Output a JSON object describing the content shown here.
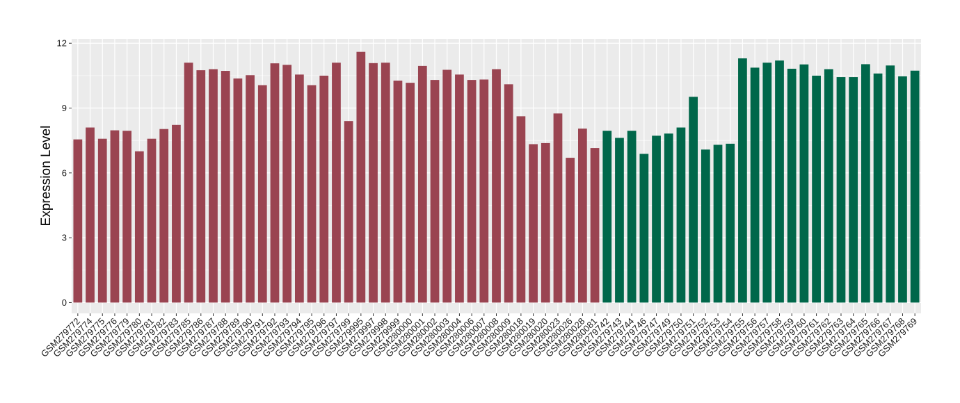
{
  "chart_data": {
    "type": "bar",
    "title": "",
    "xlabel": "",
    "ylabel": "Expression Level",
    "ylim": [
      -0.5,
      12.2
    ],
    "yticks": [
      0,
      3,
      6,
      9,
      12
    ],
    "grid": true,
    "legend": "none",
    "colors": {
      "group1": "#9a4451",
      "group2": "#00674a",
      "panel": "#ebebeb",
      "grid": "#ffffff"
    },
    "categories": [
      "GSM279772",
      "GSM279774",
      "GSM279775",
      "GSM279776",
      "GSM279779",
      "GSM279780",
      "GSM279781",
      "GSM279782",
      "GSM279783",
      "GSM279785",
      "GSM279786",
      "GSM279787",
      "GSM279788",
      "GSM279789",
      "GSM279790",
      "GSM279791",
      "GSM279792",
      "GSM279793",
      "GSM279794",
      "GSM279795",
      "GSM279796",
      "GSM279797",
      "GSM279799",
      "GSM279995",
      "GSM279997",
      "GSM279998",
      "GSM279999",
      "GSM280000",
      "GSM280001",
      "GSM280002",
      "GSM280003",
      "GSM280004",
      "GSM280006",
      "GSM280007",
      "GSM280008",
      "GSM280009",
      "GSM280018",
      "GSM280019",
      "GSM280020",
      "GSM280023",
      "GSM280026",
      "GSM280028",
      "GSM280081",
      "GSM279742",
      "GSM279743",
      "GSM279744",
      "GSM279746",
      "GSM279747",
      "GSM279749",
      "GSM279750",
      "GSM279751",
      "GSM279752",
      "GSM279753",
      "GSM279754",
      "GSM279755",
      "GSM279756",
      "GSM279757",
      "GSM279758",
      "GSM279759",
      "GSM279760",
      "GSM279761",
      "GSM279762",
      "GSM279763",
      "GSM279764",
      "GSM279765",
      "GSM279766",
      "GSM279767",
      "GSM279768",
      "GSM279769"
    ],
    "values": [
      7.55,
      8.1,
      7.58,
      7.97,
      7.95,
      7.0,
      7.58,
      8.03,
      8.22,
      11.1,
      10.75,
      10.8,
      10.72,
      10.37,
      10.52,
      10.06,
      11.07,
      11.0,
      10.55,
      10.06,
      10.5,
      11.1,
      8.4,
      11.6,
      11.08,
      11.1,
      10.27,
      10.17,
      10.95,
      10.3,
      10.77,
      10.55,
      10.3,
      10.32,
      10.8,
      10.1,
      8.62,
      7.33,
      7.38,
      8.75,
      6.7,
      8.05,
      7.15,
      7.95,
      7.62,
      7.95,
      6.88,
      7.72,
      7.82,
      8.1,
      9.52,
      7.08,
      7.3,
      7.35,
      11.3,
      10.87,
      11.1,
      11.2,
      10.82,
      11.02,
      10.5,
      10.8,
      10.43,
      10.43,
      11.03,
      10.6,
      10.97,
      10.47,
      10.73
    ],
    "groups": [
      1,
      1,
      1,
      1,
      1,
      1,
      1,
      1,
      1,
      1,
      1,
      1,
      1,
      1,
      1,
      1,
      1,
      1,
      1,
      1,
      1,
      1,
      1,
      1,
      1,
      1,
      1,
      1,
      1,
      1,
      1,
      1,
      1,
      1,
      1,
      1,
      1,
      1,
      1,
      1,
      1,
      1,
      1,
      2,
      2,
      2,
      2,
      2,
      2,
      2,
      2,
      2,
      2,
      2,
      2,
      2,
      2,
      2,
      2,
      2,
      2,
      2,
      2,
      2,
      2,
      2,
      2,
      2,
      2
    ]
  }
}
